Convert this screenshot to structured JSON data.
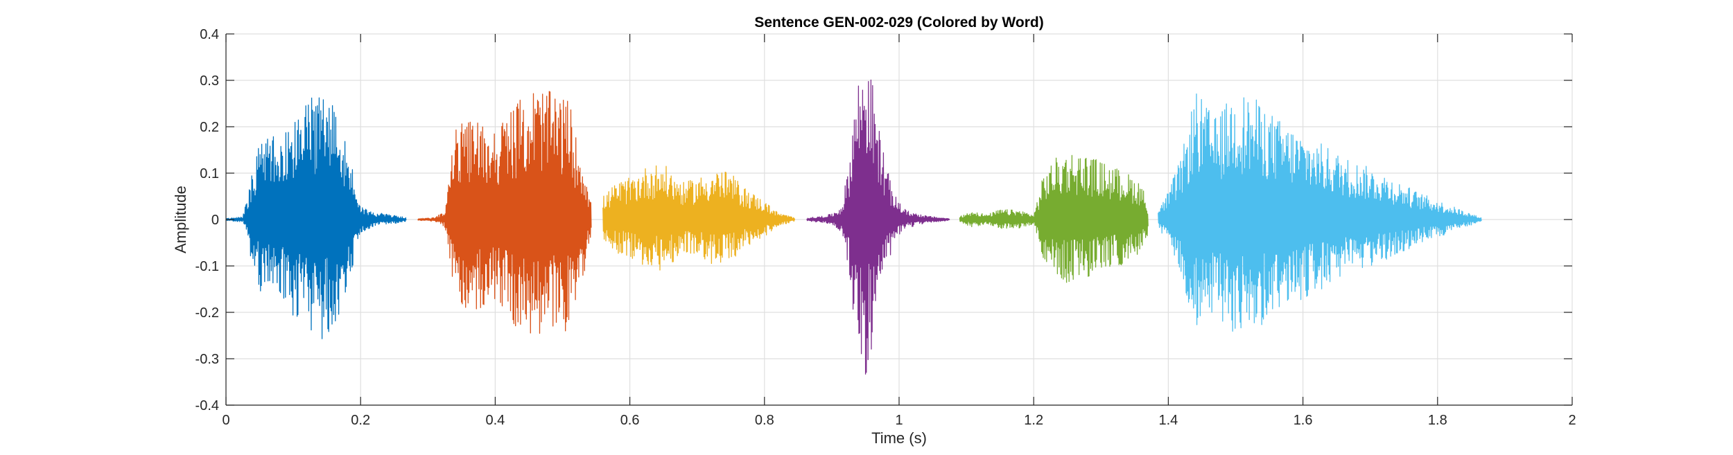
{
  "chart_data": {
    "type": "line",
    "title": "Sentence GEN-002-029 (Colored by Word)",
    "xlabel": "Time (s)",
    "ylabel": "Amplitude",
    "xlim": [
      0,
      2
    ],
    "ylim": [
      -0.4,
      0.4
    ],
    "grid": true,
    "x_ticks": [
      0,
      0.2,
      0.4,
      0.6,
      0.8,
      1,
      1.2,
      1.4,
      1.6,
      1.8,
      2
    ],
    "x_tick_labels": [
      "0",
      "0.2",
      "0.4",
      "0.6",
      "0.8",
      "1",
      "1.2",
      "1.4",
      "1.6",
      "1.8",
      "2"
    ],
    "y_ticks": [
      -0.4,
      -0.3,
      -0.2,
      -0.1,
      0,
      0.1,
      0.2,
      0.3,
      0.4
    ],
    "y_tick_labels": [
      "-0.4",
      "-0.3",
      "-0.2",
      "-0.1",
      "0",
      "0.1",
      "0.2",
      "0.3",
      "0.4"
    ],
    "series": [
      {
        "color": "#0072BD",
        "start": 0.0,
        "end": 0.268,
        "envelope": [
          [
            0.0,
            0.002
          ],
          [
            0.025,
            0.006
          ],
          [
            0.035,
            0.08
          ],
          [
            0.05,
            0.17
          ],
          [
            0.08,
            0.2
          ],
          [
            0.11,
            0.24
          ],
          [
            0.14,
            0.28
          ],
          [
            0.155,
            0.29
          ],
          [
            0.17,
            0.22
          ],
          [
            0.19,
            0.1
          ],
          [
            0.2,
            0.03
          ],
          [
            0.22,
            0.015
          ],
          [
            0.24,
            0.012
          ],
          [
            0.268,
            0.004
          ]
        ]
      },
      {
        "color": "#D95319",
        "start": 0.285,
        "end": 0.543,
        "envelope": [
          [
            0.285,
            0.002
          ],
          [
            0.31,
            0.004
          ],
          [
            0.325,
            0.02
          ],
          [
            0.34,
            0.2
          ],
          [
            0.37,
            0.22
          ],
          [
            0.4,
            0.2
          ],
          [
            0.43,
            0.25
          ],
          [
            0.46,
            0.29
          ],
          [
            0.49,
            0.27
          ],
          [
            0.51,
            0.26
          ],
          [
            0.52,
            0.18
          ],
          [
            0.53,
            0.14
          ],
          [
            0.543,
            0.03
          ]
        ]
      },
      {
        "color": "#EDB120",
        "start": 0.56,
        "end": 0.845,
        "envelope": [
          [
            0.56,
            0.05
          ],
          [
            0.58,
            0.08
          ],
          [
            0.6,
            0.09
          ],
          [
            0.63,
            0.12
          ],
          [
            0.65,
            0.12
          ],
          [
            0.68,
            0.08
          ],
          [
            0.7,
            0.09
          ],
          [
            0.73,
            0.11
          ],
          [
            0.75,
            0.1
          ],
          [
            0.77,
            0.07
          ],
          [
            0.8,
            0.04
          ],
          [
            0.82,
            0.015
          ],
          [
            0.845,
            0.004
          ]
        ]
      },
      {
        "color": "#7E2F8E",
        "start": 0.863,
        "end": 1.075,
        "envelope": [
          [
            0.863,
            0.004
          ],
          [
            0.88,
            0.006
          ],
          [
            0.9,
            0.012
          ],
          [
            0.915,
            0.03
          ],
          [
            0.925,
            0.12
          ],
          [
            0.935,
            0.28
          ],
          [
            0.95,
            0.37
          ],
          [
            0.96,
            0.3
          ],
          [
            0.97,
            0.2
          ],
          [
            0.99,
            0.06
          ],
          [
            1.01,
            0.02
          ],
          [
            1.04,
            0.008
          ],
          [
            1.075,
            0.002
          ]
        ]
      },
      {
        "color": "#77AC30",
        "start": 1.09,
        "end": 1.37,
        "envelope": [
          [
            1.09,
            0.006
          ],
          [
            1.11,
            0.02
          ],
          [
            1.13,
            0.01
          ],
          [
            1.15,
            0.022
          ],
          [
            1.18,
            0.02
          ],
          [
            1.2,
            0.01
          ],
          [
            1.215,
            0.1
          ],
          [
            1.23,
            0.13
          ],
          [
            1.25,
            0.15
          ],
          [
            1.28,
            0.14
          ],
          [
            1.31,
            0.12
          ],
          [
            1.34,
            0.1
          ],
          [
            1.36,
            0.08
          ],
          [
            1.37,
            0.03
          ]
        ]
      },
      {
        "color": "#4DBEEE",
        "start": 1.385,
        "end": 1.865,
        "envelope": [
          [
            1.385,
            0.02
          ],
          [
            1.4,
            0.06
          ],
          [
            1.42,
            0.14
          ],
          [
            1.44,
            0.28
          ],
          [
            1.47,
            0.22
          ],
          [
            1.5,
            0.28
          ],
          [
            1.53,
            0.26
          ],
          [
            1.57,
            0.21
          ],
          [
            1.62,
            0.17
          ],
          [
            1.67,
            0.13
          ],
          [
            1.72,
            0.1
          ],
          [
            1.77,
            0.06
          ],
          [
            1.82,
            0.03
          ],
          [
            1.865,
            0.004
          ]
        ]
      }
    ]
  }
}
